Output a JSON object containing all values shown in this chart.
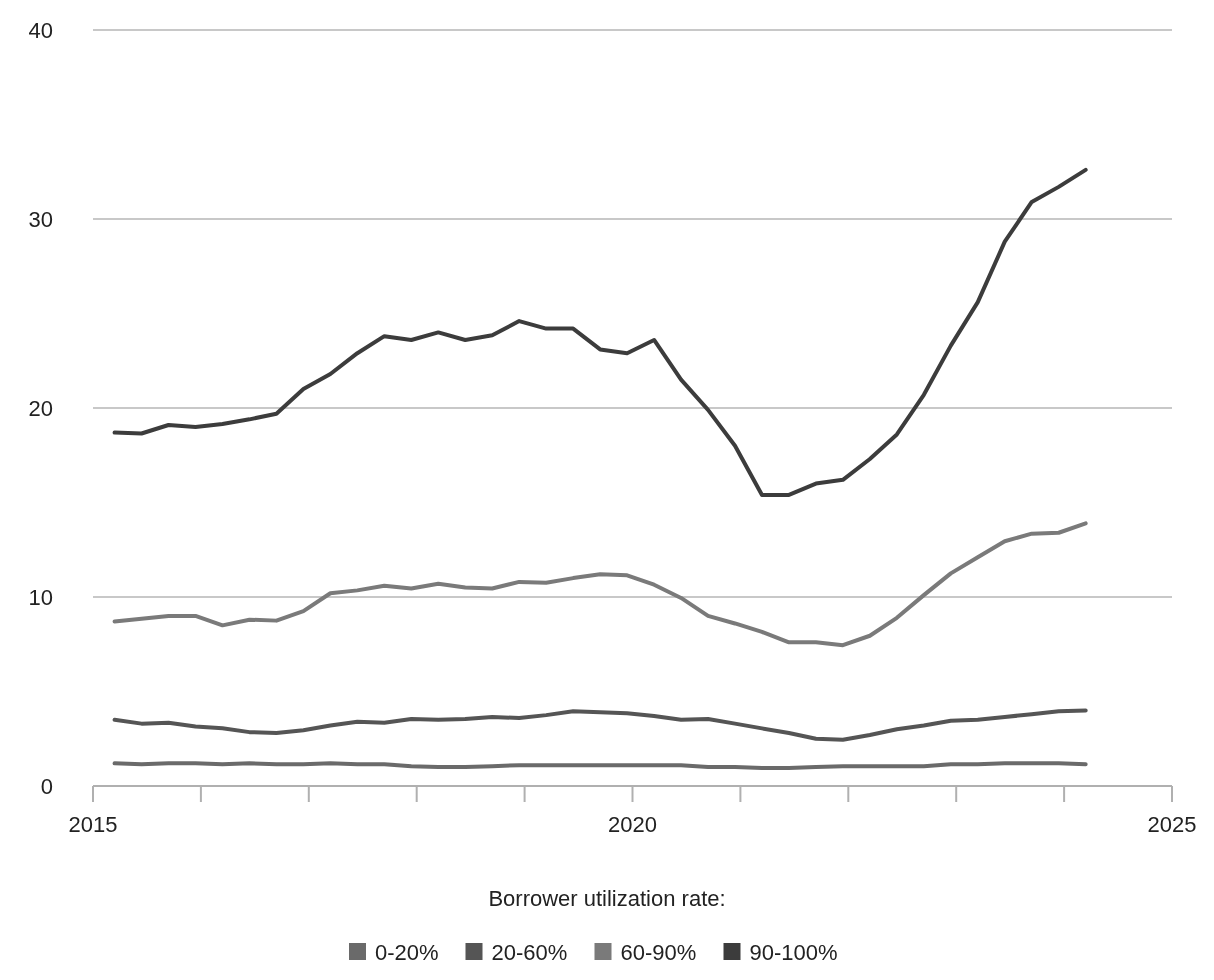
{
  "chart_data": {
    "type": "line",
    "x": [
      2015.2,
      2015.45,
      2015.7,
      2015.95,
      2016.2,
      2016.45,
      2016.7,
      2016.95,
      2017.2,
      2017.45,
      2017.7,
      2017.95,
      2018.2,
      2018.45,
      2018.7,
      2018.95,
      2019.2,
      2019.45,
      2019.7,
      2019.95,
      2020.2,
      2020.45,
      2020.7,
      2020.95,
      2021.2,
      2021.45,
      2021.7,
      2021.95,
      2022.2,
      2022.45,
      2022.7,
      2022.95,
      2023.2,
      2023.45,
      2023.7,
      2023.95,
      2024.2
    ],
    "series": [
      {
        "name": "0-20%",
        "color": "#6a6a6a",
        "values": [
          1.2,
          1.15,
          1.2,
          1.2,
          1.15,
          1.2,
          1.15,
          1.15,
          1.2,
          1.15,
          1.15,
          1.05,
          1.0,
          1.0,
          1.05,
          1.1,
          1.1,
          1.1,
          1.1,
          1.1,
          1.1,
          1.1,
          1.0,
          1.0,
          0.95,
          0.95,
          1.0,
          1.05,
          1.05,
          1.05,
          1.05,
          1.15,
          1.15,
          1.2,
          1.2,
          1.2,
          1.15
        ]
      },
      {
        "name": "20-60%",
        "color": "#555555",
        "values": [
          3.5,
          3.3,
          3.35,
          3.15,
          3.05,
          2.85,
          2.8,
          2.95,
          3.2,
          3.4,
          3.35,
          3.55,
          3.5,
          3.55,
          3.65,
          3.6,
          3.75,
          3.95,
          3.9,
          3.85,
          3.7,
          3.5,
          3.55,
          3.3,
          3.05,
          2.8,
          2.5,
          2.45,
          2.7,
          3.0,
          3.2,
          3.45,
          3.5,
          3.65,
          3.8,
          3.95,
          4.0
        ]
      },
      {
        "name": "60-90%",
        "color": "#7a7a7a",
        "values": [
          8.7,
          8.85,
          9.0,
          9.0,
          8.5,
          8.8,
          8.75,
          9.25,
          10.2,
          10.35,
          10.6,
          10.45,
          10.7,
          10.5,
          10.45,
          10.8,
          10.75,
          11.0,
          11.2,
          11.15,
          10.65,
          9.95,
          9.0,
          8.6,
          8.15,
          7.6,
          7.6,
          7.45,
          7.95,
          8.9,
          10.1,
          11.25,
          12.1,
          12.95,
          13.35,
          13.4,
          13.9
        ]
      },
      {
        "name": "90-100%",
        "color": "#3c3c3c",
        "values": [
          18.7,
          18.65,
          19.1,
          19.0,
          19.15,
          19.4,
          19.7,
          21.0,
          21.8,
          22.9,
          23.8,
          23.6,
          24.0,
          23.6,
          23.85,
          24.6,
          24.2,
          24.2,
          23.1,
          22.9,
          23.6,
          21.5,
          19.9,
          18.0,
          15.4,
          15.4,
          16.0,
          16.2,
          17.3,
          18.6,
          20.7,
          23.3,
          25.6,
          28.8,
          30.9,
          31.7,
          32.6
        ]
      }
    ],
    "xlim": [
      2015,
      2025
    ],
    "xticks": [
      2015,
      {
        "value": 2016,
        "label": null
      },
      {
        "value": 2017,
        "label": null
      },
      {
        "value": 2018,
        "label": null
      },
      {
        "value": 2019,
        "label": null
      },
      2020,
      {
        "value": 2021,
        "label": null
      },
      {
        "value": 2022,
        "label": null
      },
      {
        "value": 2023,
        "label": null
      },
      {
        "value": 2024,
        "label": null
      },
      2025
    ],
    "ylim": [
      0,
      40
    ],
    "yticks": [
      0,
      10,
      20,
      30,
      40
    ],
    "grid": "y",
    "legend": "bottom",
    "legend_title": "Borrower utilization rate:",
    "line_style": "solid"
  }
}
